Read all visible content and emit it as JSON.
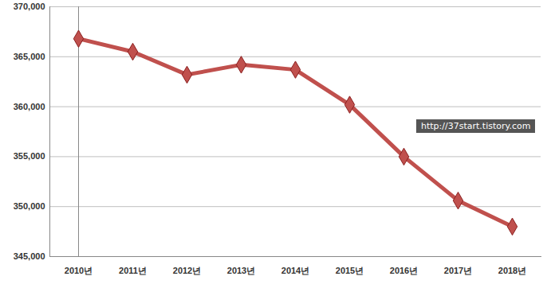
{
  "chart_data": {
    "type": "line",
    "categories": [
      "2010년",
      "2011년",
      "2012년",
      "2013년",
      "2014년",
      "2015년",
      "2016년",
      "2017년",
      "2018년"
    ],
    "values": [
      366800,
      365500,
      363200,
      364200,
      363700,
      360200,
      355000,
      350600,
      348000
    ],
    "color": "#c0504d",
    "marker": "diamond",
    "ylim": [
      345000,
      370000
    ],
    "yticks": [
      {
        "value": 345000,
        "label": "345,000"
      },
      {
        "value": 350000,
        "label": "350,000"
      },
      {
        "value": 355000,
        "label": "355,000"
      },
      {
        "value": 360000,
        "label": "360,000"
      },
      {
        "value": 365000,
        "label": "365,000"
      },
      {
        "value": 370000,
        "label": "370,000"
      }
    ],
    "grid": true,
    "annotations": [
      "http://37start.tistory.com"
    ]
  }
}
